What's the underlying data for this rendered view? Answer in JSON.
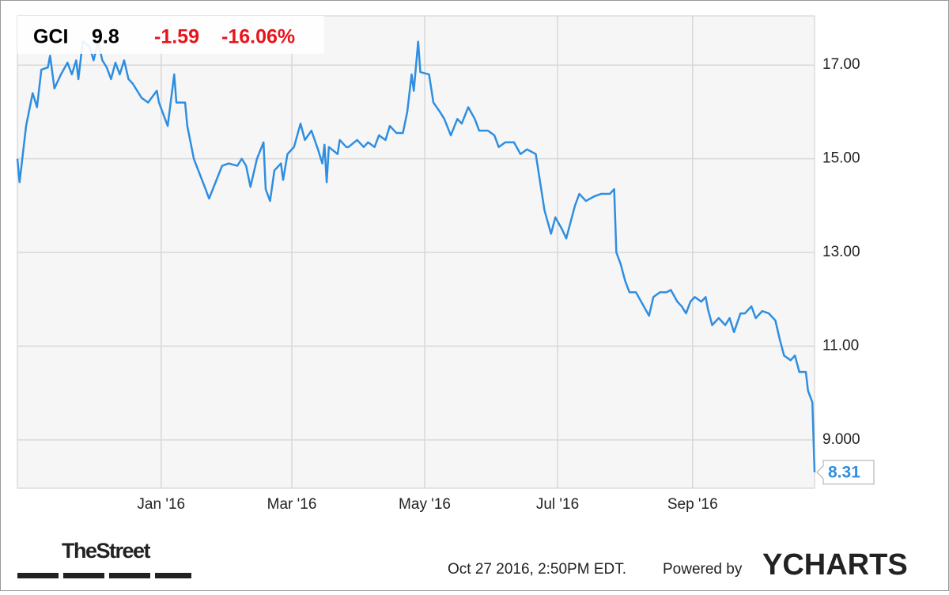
{
  "chart_data": {
    "type": "line",
    "x": [
      0,
      1,
      4,
      7,
      9,
      11,
      14,
      15,
      17,
      20,
      23,
      25,
      27,
      28,
      30,
      33,
      35,
      37,
      39,
      41,
      43,
      45,
      47,
      49,
      51,
      53,
      57,
      60,
      64,
      65,
      69,
      72,
      73,
      77,
      78,
      81,
      86,
      88,
      91,
      94,
      97,
      101,
      103,
      105,
      107,
      110,
      113,
      114,
      116,
      118,
      121,
      122,
      124,
      127,
      130,
      132,
      135,
      138,
      140,
      141,
      142,
      143,
      147,
      148,
      151,
      152,
      156,
      159,
      161,
      164,
      166,
      169,
      171,
      174,
      177,
      179,
      181,
      182,
      184,
      185,
      189,
      191,
      194,
      196,
      199,
      202,
      204,
      207,
      210,
      212,
      216,
      219,
      221,
      224,
      228,
      231,
      234,
      238,
      240,
      242,
      245,
      247,
      250,
      252,
      254,
      256,
      258,
      261,
      265,
      268,
      272,
      274,
      275,
      277,
      279,
      281,
      284,
      287,
      290,
      292,
      295,
      298,
      300,
      303,
      305,
      307,
      309,
      311,
      314,
      316,
      317,
      319,
      322,
      325,
      327,
      329,
      332,
      334,
      337,
      339,
      342,
      345,
      348,
      350,
      352,
      355,
      357,
      359,
      362,
      363,
      365,
      366
    ],
    "series": [
      {
        "name": "GCI",
        "color": "#2f8ee0",
        "values": [
          15.0,
          14.5,
          15.7,
          16.4,
          16.1,
          16.9,
          16.95,
          17.2,
          16.5,
          16.8,
          17.05,
          16.8,
          17.1,
          16.7,
          17.5,
          17.4,
          17.1,
          17.5,
          17.1,
          16.95,
          16.7,
          17.05,
          16.8,
          17.1,
          16.7,
          16.6,
          16.3,
          16.2,
          16.45,
          16.2,
          15.7,
          16.8,
          16.2,
          16.2,
          15.7,
          15.0,
          14.4,
          14.15,
          14.5,
          14.85,
          14.9,
          14.85,
          15.0,
          14.85,
          14.4,
          15.0,
          15.35,
          14.35,
          14.1,
          14.75,
          14.9,
          14.55,
          15.1,
          15.25,
          15.75,
          15.4,
          15.6,
          15.2,
          14.9,
          15.3,
          14.5,
          15.25,
          15.1,
          15.4,
          15.25,
          15.25,
          15.4,
          15.25,
          15.35,
          15.25,
          15.5,
          15.4,
          15.7,
          15.55,
          15.55,
          16.0,
          16.8,
          16.45,
          17.5,
          16.85,
          16.8,
          16.2,
          16.0,
          15.85,
          15.5,
          15.85,
          15.75,
          16.1,
          15.85,
          15.6,
          15.6,
          15.5,
          15.25,
          15.35,
          15.35,
          15.1,
          15.2,
          15.1,
          14.5,
          13.9,
          13.4,
          13.75,
          13.5,
          13.3,
          13.65,
          14.0,
          14.25,
          14.1,
          14.2,
          14.25,
          14.25,
          14.35,
          13.0,
          12.75,
          12.4,
          12.15,
          12.15,
          11.9,
          11.65,
          12.05,
          12.15,
          12.15,
          12.2,
          11.95,
          11.85,
          11.7,
          11.95,
          12.05,
          11.95,
          12.05,
          11.8,
          11.45,
          11.6,
          11.45,
          11.6,
          11.3,
          11.7,
          11.7,
          11.85,
          11.6,
          11.75,
          11.7,
          11.55,
          11.15,
          10.8,
          10.7,
          10.8,
          10.45,
          10.45,
          10.05,
          9.8,
          8.31
        ]
      }
    ],
    "xlim": [
      0,
      366
    ],
    "xticks": [
      {
        "value": 66,
        "label": "Jan '16"
      },
      {
        "value": 126,
        "label": "Mar '16"
      },
      {
        "value": 187,
        "label": "May '16"
      },
      {
        "value": 248,
        "label": "Jul '16"
      },
      {
        "value": 310,
        "label": "Sep '16"
      }
    ],
    "ylim": [
      7.97,
      18.05
    ],
    "yticks": [
      {
        "value": 9,
        "label": "9.000"
      },
      {
        "value": 11,
        "label": "11.00"
      },
      {
        "value": 13,
        "label": "13.00"
      },
      {
        "value": 15,
        "label": "15.00"
      },
      {
        "value": 17,
        "label": "17.00"
      }
    ],
    "grid": true
  },
  "header": {
    "change": "-1.59",
    "change_pct": "-16.06%"
  },
  "footer": {
    "brand": "TheStreet",
    "timestamp": "Oct 27 2016, 2:50PM EDT.",
    "powered": "Powered by",
    "logo": "YCHARTS"
  }
}
